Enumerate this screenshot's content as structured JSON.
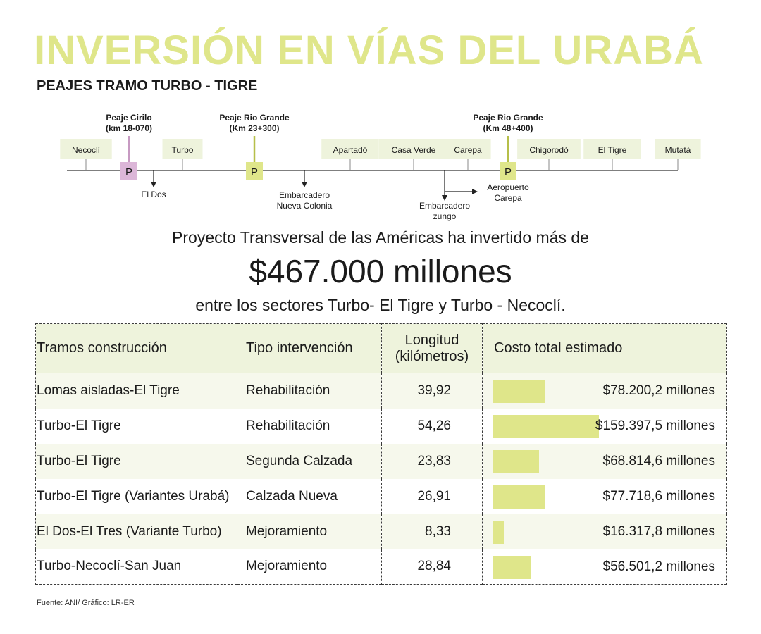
{
  "colors": {
    "accent": "#dfe68a",
    "accent_dark": "#b6bf4a",
    "band": "#eef3dc",
    "band_light": "#f6f8ec",
    "peaje_pink": "#dcb6d8",
    "peaje_pink_line": "#c79ac2"
  },
  "header": {
    "title": "INVERSIÓN EN VÍAS DEL URABÁ",
    "subtitle": "PEAJES TRAMO TURBO - TIGRE"
  },
  "route_map": {
    "towns": [
      "Necoclí",
      "Turbo",
      "Apartadó",
      "Casa Verde",
      "Carepa",
      "Chigorodó",
      "El Tigre",
      "Mutatá"
    ],
    "tolls": [
      {
        "name": "Peaje Cirilo",
        "km": "(km 18-070)",
        "marker": "P",
        "color": "pink"
      },
      {
        "name": "Peaje Rio Grande",
        "km": "(Km 23+300)",
        "marker": "P",
        "color": "green"
      },
      {
        "name": "Peaje Rio Grande",
        "km": "(Km 48+400)",
        "marker": "P",
        "color": "green"
      }
    ],
    "branches": [
      {
        "lines": [
          "El Dos"
        ]
      },
      {
        "lines": [
          "Embarcadero",
          "Nueva Colonia"
        ]
      },
      {
        "lines": [
          "Embarcadero",
          "zungo"
        ]
      },
      {
        "lines": [
          "Aeropuerto",
          "Carepa"
        ]
      }
    ]
  },
  "headline": {
    "line1": "Proyecto Transversal de las Américas ha invertido más de",
    "amount": "$467.000 millones",
    "line3": "entre los sectores Turbo- El Tigre y Turbo - Necoclí."
  },
  "chart_data": {
    "type": "table",
    "title": "Proyecto Transversal de las Américas ha invertido más de $467.000 millones",
    "columns": [
      "Tramos construcción",
      "Tipo intervención",
      "Longitud (kilómetros)",
      "Costo total estimado"
    ],
    "column_header_lines": {
      "longitud": [
        "Longitud",
        "(kilómetros)"
      ]
    },
    "rows": [
      {
        "tramo": "Lomas aisladas-El Tigre",
        "tipo": "Rehabilitación",
        "longitud": "39,92",
        "costo": "$78.200,2 millones",
        "costo_value": 78200.2
      },
      {
        "tramo": "Turbo-El Tigre",
        "tipo": "Rehabilitación",
        "longitud": "54,26",
        "costo": "$159.397,5 millones",
        "costo_value": 159397.5
      },
      {
        "tramo": "Turbo-El Tigre",
        "tipo": "Segunda Calzada",
        "longitud": "23,83",
        "costo": "$68.814,6 millones",
        "costo_value": 68814.6
      },
      {
        "tramo": "Turbo-El Tigre (Variantes Urabá)",
        "tipo": "Calzada Nueva",
        "longitud": "26,91",
        "costo": "$77.718,6 millones",
        "costo_value": 77718.6
      },
      {
        "tramo": "El Dos-El Tres (Variante Turbo)",
        "tipo": "Mejoramiento",
        "longitud": "8,33",
        "costo": "$16.317,8 millones",
        "costo_value": 16317.8
      },
      {
        "tramo": "Turbo-Necoclí-San Juan",
        "tipo": "Mejoramiento",
        "longitud": "28,84",
        "costo": "$56.501,2 millones",
        "costo_value": 56501.2
      }
    ],
    "bar_max": 159397.5
  },
  "footer": {
    "source": "Fuente: ANI/ Gráfico: LR-ER"
  }
}
